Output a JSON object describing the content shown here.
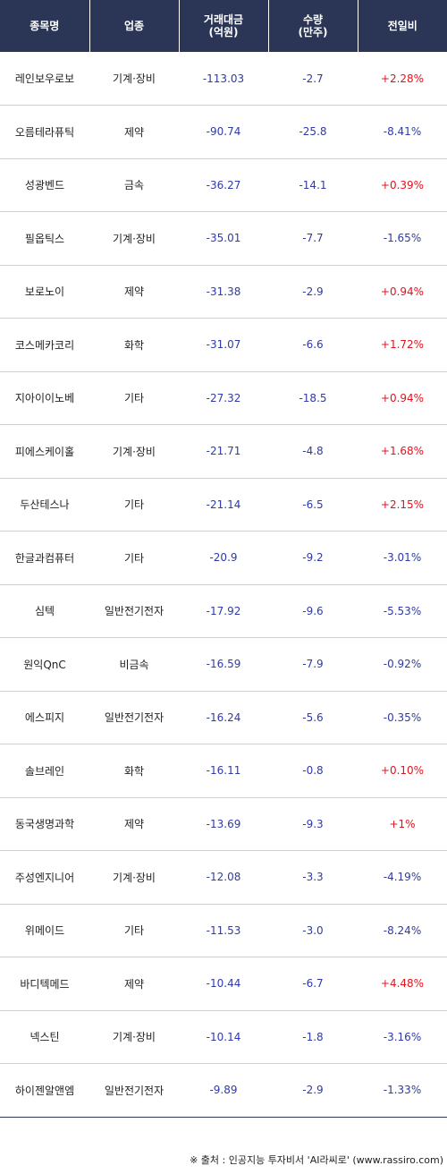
{
  "headers": {
    "name": "종목명",
    "sector": "업종",
    "trade_amount_line1": "거래대금",
    "trade_amount_line2": "(억원)",
    "volume_line1": "수량",
    "volume_line2": "(만주)",
    "change": "전일비"
  },
  "colors": {
    "header_bg": "#2b3556",
    "negative_number": "#2f3aa8",
    "positive_change": "#e0141e"
  },
  "rows": [
    {
      "name": "레인보우로보",
      "sector": "기계·장비",
      "amount": "-113.03",
      "volume": "-2.7",
      "change": "+2.28%",
      "dir": "up"
    },
    {
      "name": "오름테라퓨틱",
      "sector": "제약",
      "amount": "-90.74",
      "volume": "-25.8",
      "change": "-8.41%",
      "dir": "down"
    },
    {
      "name": "성광벤드",
      "sector": "금속",
      "amount": "-36.27",
      "volume": "-14.1",
      "change": "+0.39%",
      "dir": "up"
    },
    {
      "name": "필옵틱스",
      "sector": "기계·장비",
      "amount": "-35.01",
      "volume": "-7.7",
      "change": "-1.65%",
      "dir": "down"
    },
    {
      "name": "보로노이",
      "sector": "제약",
      "amount": "-31.38",
      "volume": "-2.9",
      "change": "+0.94%",
      "dir": "up"
    },
    {
      "name": "코스메카코리",
      "sector": "화학",
      "amount": "-31.07",
      "volume": "-6.6",
      "change": "+1.72%",
      "dir": "up"
    },
    {
      "name": "지아이이노베",
      "sector": "기타",
      "amount": "-27.32",
      "volume": "-18.5",
      "change": "+0.94%",
      "dir": "up"
    },
    {
      "name": "피에스케이홀",
      "sector": "기계·장비",
      "amount": "-21.71",
      "volume": "-4.8",
      "change": "+1.68%",
      "dir": "up"
    },
    {
      "name": "두산테스나",
      "sector": "기타",
      "amount": "-21.14",
      "volume": "-6.5",
      "change": "+2.15%",
      "dir": "up"
    },
    {
      "name": "한글과컴퓨터",
      "sector": "기타",
      "amount": "-20.9",
      "volume": "-9.2",
      "change": "-3.01%",
      "dir": "down"
    },
    {
      "name": "심텍",
      "sector": "일반전기전자",
      "amount": "-17.92",
      "volume": "-9.6",
      "change": "-5.53%",
      "dir": "down"
    },
    {
      "name": "원익QnC",
      "sector": "비금속",
      "amount": "-16.59",
      "volume": "-7.9",
      "change": "-0.92%",
      "dir": "down"
    },
    {
      "name": "에스피지",
      "sector": "일반전기전자",
      "amount": "-16.24",
      "volume": "-5.6",
      "change": "-0.35%",
      "dir": "down"
    },
    {
      "name": "솔브레인",
      "sector": "화학",
      "amount": "-16.11",
      "volume": "-0.8",
      "change": "+0.10%",
      "dir": "up"
    },
    {
      "name": "동국생명과학",
      "sector": "제약",
      "amount": "-13.69",
      "volume": "-9.3",
      "change": "+1%",
      "dir": "up"
    },
    {
      "name": "주성엔지니어",
      "sector": "기계·장비",
      "amount": "-12.08",
      "volume": "-3.3",
      "change": "-4.19%",
      "dir": "down"
    },
    {
      "name": "위메이드",
      "sector": "기타",
      "amount": "-11.53",
      "volume": "-3.0",
      "change": "-8.24%",
      "dir": "down"
    },
    {
      "name": "바디텍메드",
      "sector": "제약",
      "amount": "-10.44",
      "volume": "-6.7",
      "change": "+4.48%",
      "dir": "up"
    },
    {
      "name": "넥스틴",
      "sector": "기계·장비",
      "amount": "-10.14",
      "volume": "-1.8",
      "change": "-3.16%",
      "dir": "down"
    },
    {
      "name": "하이젠알앤엠",
      "sector": "일반전기전자",
      "amount": "-9.89",
      "volume": "-2.9",
      "change": "-1.33%",
      "dir": "down"
    }
  ],
  "footer": "※ 출처 : 인공지능 투자비서 'AI라씨로' (www.rassiro.com)"
}
